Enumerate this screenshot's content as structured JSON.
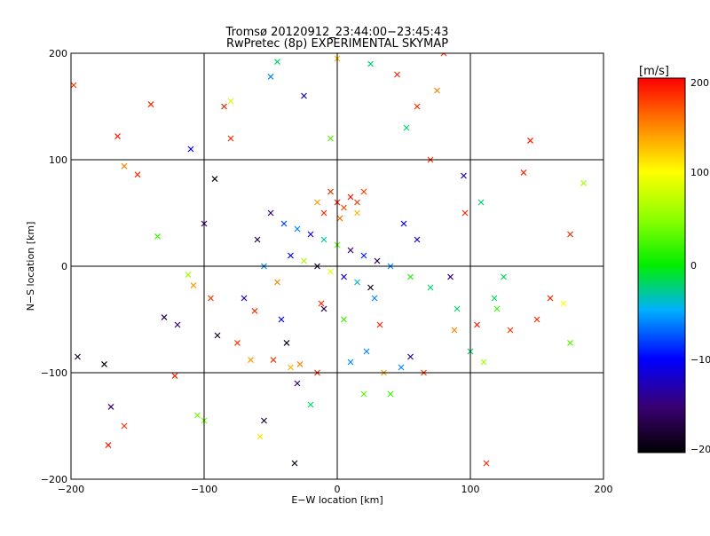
{
  "chart_data": {
    "type": "scatter",
    "title": "Tromsø 20120912_23:44:00−23:45:43",
    "subtitle": "RwPretec (8p) EXPERIMENTAL SKYMAP",
    "xlabel": "E−W location [km]",
    "ylabel": "N−S location [km]",
    "xlim": [
      -200,
      200
    ],
    "ylim": [
      -200,
      200
    ],
    "xticks": [
      "−200",
      "−100",
      "0",
      "100",
      "200"
    ],
    "yticks": [
      "−200",
      "−100",
      "0",
      "100",
      "200"
    ],
    "grid": true,
    "marker": "x",
    "colorbar": {
      "label": "[m/s]",
      "range": [
        -200,
        200
      ],
      "ticks": [
        "−200",
        "−100",
        "0",
        "100",
        "200"
      ],
      "colormap": "rainbow-black-to-red"
    },
    "points": [
      {
        "x": -195,
        "y": -85,
        "v": -180
      },
      {
        "x": -175,
        "y": -92,
        "v": -190
      },
      {
        "x": -170,
        "y": -132,
        "v": -160
      },
      {
        "x": -172,
        "y": -168,
        "v": 190
      },
      {
        "x": -160,
        "y": -150,
        "v": 180
      },
      {
        "x": -165,
        "y": 122,
        "v": 190
      },
      {
        "x": -160,
        "y": 94,
        "v": 150
      },
      {
        "x": -140,
        "y": 152,
        "v": 185
      },
      {
        "x": -135,
        "y": 28,
        "v": 20
      },
      {
        "x": -130,
        "y": -48,
        "v": -170
      },
      {
        "x": -110,
        "y": 110,
        "v": -110
      },
      {
        "x": -105,
        "y": -140,
        "v": 40
      },
      {
        "x": -100,
        "y": -145,
        "v": 40
      },
      {
        "x": -112,
        "y": -8,
        "v": 60
      },
      {
        "x": -108,
        "y": -18,
        "v": 140
      },
      {
        "x": -120,
        "y": -55,
        "v": -150
      },
      {
        "x": -95,
        "y": -30,
        "v": 180
      },
      {
        "x": -90,
        "y": -65,
        "v": -180
      },
      {
        "x": -85,
        "y": 150,
        "v": 185
      },
      {
        "x": -80,
        "y": 155,
        "v": 80
      },
      {
        "x": -75,
        "y": -72,
        "v": 180
      },
      {
        "x": -70,
        "y": -30,
        "v": -130
      },
      {
        "x": -62,
        "y": -42,
        "v": 180
      },
      {
        "x": -58,
        "y": -160,
        "v": 110
      },
      {
        "x": -55,
        "y": -145,
        "v": -180
      },
      {
        "x": -50,
        "y": 178,
        "v": -60
      },
      {
        "x": -45,
        "y": 192,
        "v": -20
      },
      {
        "x": -42,
        "y": -50,
        "v": -110
      },
      {
        "x": -38,
        "y": -72,
        "v": -190
      },
      {
        "x": -35,
        "y": -95,
        "v": 130
      },
      {
        "x": -32,
        "y": -185,
        "v": -190
      },
      {
        "x": -30,
        "y": -110,
        "v": -150
      },
      {
        "x": -25,
        "y": 160,
        "v": -110
      },
      {
        "x": -20,
        "y": -130,
        "v": -20
      },
      {
        "x": -15,
        "y": -100,
        "v": 185
      },
      {
        "x": -10,
        "y": -40,
        "v": -170
      },
      {
        "x": -5,
        "y": 120,
        "v": 30
      },
      {
        "x": 0,
        "y": 195,
        "v": 130
      },
      {
        "x": 10,
        "y": -90,
        "v": -60
      },
      {
        "x": 15,
        "y": 60,
        "v": 180
      },
      {
        "x": 20,
        "y": -120,
        "v": 30
      },
      {
        "x": 22,
        "y": -80,
        "v": -60
      },
      {
        "x": 25,
        "y": 190,
        "v": -20
      },
      {
        "x": 32,
        "y": -55,
        "v": 185
      },
      {
        "x": 35,
        "y": -100,
        "v": 140
      },
      {
        "x": 40,
        "y": -120,
        "v": 20
      },
      {
        "x": 45,
        "y": 180,
        "v": 185
      },
      {
        "x": 52,
        "y": 130,
        "v": -20
      },
      {
        "x": 55,
        "y": -85,
        "v": -130
      },
      {
        "x": 60,
        "y": 150,
        "v": 185
      },
      {
        "x": 65,
        "y": -100,
        "v": 180
      },
      {
        "x": 70,
        "y": -20,
        "v": -20
      },
      {
        "x": 75,
        "y": 165,
        "v": 150
      },
      {
        "x": 80,
        "y": 200,
        "v": 185
      },
      {
        "x": 85,
        "y": -10,
        "v": -140
      },
      {
        "x": 90,
        "y": -40,
        "v": -20
      },
      {
        "x": 95,
        "y": 85,
        "v": -130
      },
      {
        "x": 100,
        "y": -80,
        "v": -20
      },
      {
        "x": 105,
        "y": -55,
        "v": 190
      },
      {
        "x": 110,
        "y": -90,
        "v": 60
      },
      {
        "x": 112,
        "y": -185,
        "v": 185
      },
      {
        "x": 118,
        "y": -30,
        "v": -20
      },
      {
        "x": 120,
        "y": -40,
        "v": 20
      },
      {
        "x": 125,
        "y": -10,
        "v": -20
      },
      {
        "x": 130,
        "y": -60,
        "v": 180
      },
      {
        "x": 140,
        "y": 88,
        "v": 185
      },
      {
        "x": 145,
        "y": 118,
        "v": 190
      },
      {
        "x": 150,
        "y": -50,
        "v": 185
      },
      {
        "x": 160,
        "y": -30,
        "v": 190
      },
      {
        "x": 170,
        "y": -35,
        "v": 100
      },
      {
        "x": 175,
        "y": 30,
        "v": 185
      },
      {
        "x": 175,
        "y": -72,
        "v": 30
      },
      {
        "x": 185,
        "y": 78,
        "v": 60
      },
      {
        "x": -198,
        "y": 170,
        "v": 180
      },
      {
        "x": -150,
        "y": 86,
        "v": 185
      },
      {
        "x": -122,
        "y": -103,
        "v": 190
      },
      {
        "x": -100,
        "y": 40,
        "v": -150
      },
      {
        "x": -92,
        "y": 82,
        "v": -190
      },
      {
        "x": -80,
        "y": 120,
        "v": 185
      },
      {
        "x": -65,
        "y": -88,
        "v": 140
      },
      {
        "x": -48,
        "y": -88,
        "v": 180
      },
      {
        "x": -28,
        "y": -92,
        "v": 150
      },
      {
        "x": -12,
        "y": -35,
        "v": 185
      },
      {
        "x": 5,
        "y": -50,
        "v": 20
      },
      {
        "x": 28,
        "y": -30,
        "v": -60
      },
      {
        "x": 48,
        "y": -95,
        "v": -60
      },
      {
        "x": 70,
        "y": 100,
        "v": 185
      },
      {
        "x": 88,
        "y": -60,
        "v": 150
      },
      {
        "x": 96,
        "y": 50,
        "v": 185
      },
      {
        "x": 108,
        "y": 60,
        "v": -20
      },
      {
        "x": -40,
        "y": 40,
        "v": -80
      },
      {
        "x": -30,
        "y": 35,
        "v": -60
      },
      {
        "x": -20,
        "y": 30,
        "v": -120
      },
      {
        "x": -10,
        "y": 25,
        "v": -30
      },
      {
        "x": 0,
        "y": 20,
        "v": 30
      },
      {
        "x": 10,
        "y": 15,
        "v": -150
      },
      {
        "x": 20,
        "y": 10,
        "v": -90
      },
      {
        "x": 30,
        "y": 5,
        "v": -170
      },
      {
        "x": 40,
        "y": 0,
        "v": -60
      },
      {
        "x": -35,
        "y": 10,
        "v": -100
      },
      {
        "x": -25,
        "y": 5,
        "v": 60
      },
      {
        "x": -15,
        "y": 0,
        "v": -180
      },
      {
        "x": -5,
        "y": -5,
        "v": 90
      },
      {
        "x": 5,
        "y": -10,
        "v": -120
      },
      {
        "x": 15,
        "y": -15,
        "v": -40
      },
      {
        "x": 25,
        "y": -20,
        "v": -190
      },
      {
        "x": -45,
        "y": -15,
        "v": 150
      },
      {
        "x": -50,
        "y": 50,
        "v": -150
      },
      {
        "x": 0,
        "y": 60,
        "v": 190
      },
      {
        "x": 5,
        "y": 55,
        "v": 170
      },
      {
        "x": 10,
        "y": 65,
        "v": 195
      },
      {
        "x": -5,
        "y": 70,
        "v": 185
      },
      {
        "x": 15,
        "y": 50,
        "v": 130
      },
      {
        "x": -10,
        "y": 50,
        "v": 185
      },
      {
        "x": 20,
        "y": 70,
        "v": 175
      },
      {
        "x": -15,
        "y": 60,
        "v": 140
      },
      {
        "x": 2,
        "y": 45,
        "v": 160
      },
      {
        "x": -60,
        "y": 25,
        "v": -170
      },
      {
        "x": 60,
        "y": 25,
        "v": -130
      },
      {
        "x": 50,
        "y": 40,
        "v": -110
      },
      {
        "x": -55,
        "y": 0,
        "v": -60
      },
      {
        "x": 55,
        "y": -10,
        "v": 10
      }
    ]
  }
}
